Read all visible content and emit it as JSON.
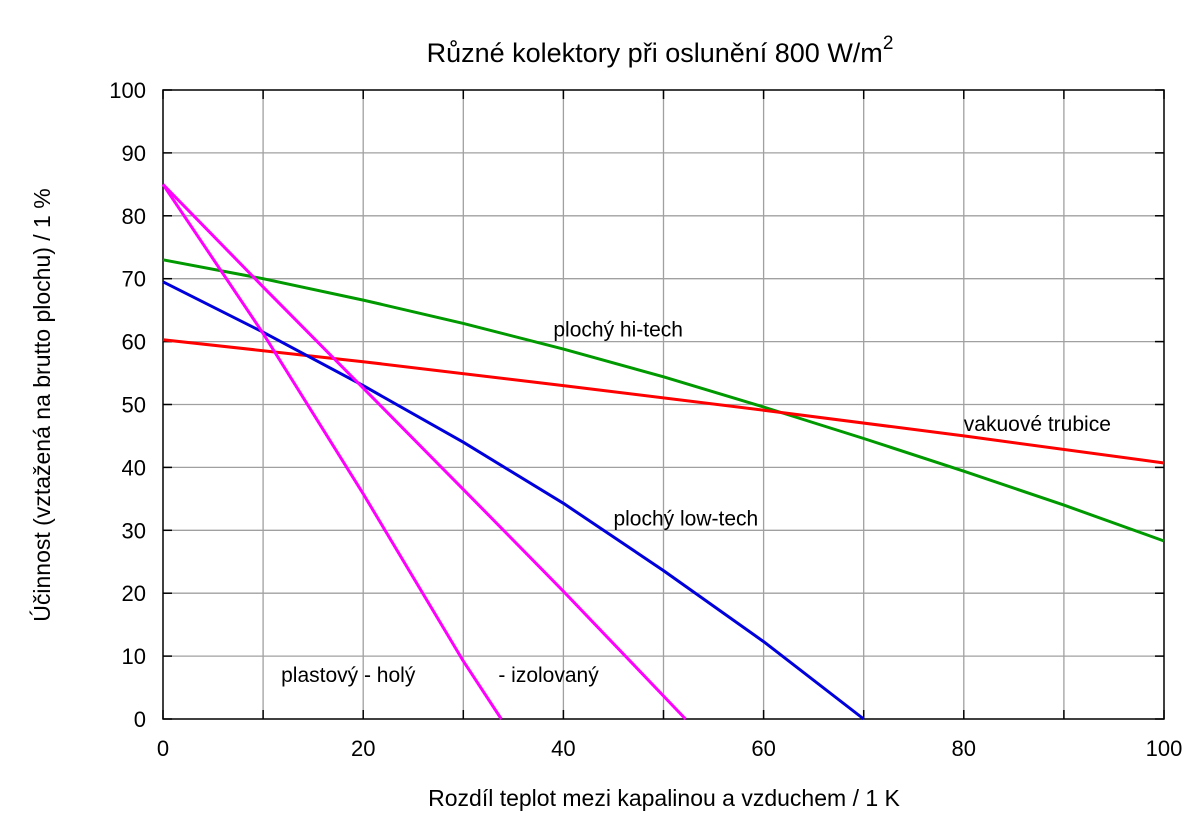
{
  "chart_data": {
    "type": "line",
    "title": "Různé kolektory při oslunění 800 W/m",
    "title_superscript": "2",
    "xlabel": "Rozdíl teplot mezi kapalinou a vzduchem / 1 K",
    "ylabel": "Účinnost (vztažená na brutto plochu) / 1 %",
    "xlim": [
      0,
      100
    ],
    "ylim": [
      0,
      100
    ],
    "x_ticks": [
      0,
      20,
      40,
      60,
      80,
      100
    ],
    "y_ticks": [
      0,
      10,
      20,
      30,
      40,
      50,
      60,
      70,
      80,
      90,
      100
    ],
    "x_grid": [
      0,
      10,
      20,
      30,
      40,
      50,
      60,
      70,
      80,
      90,
      100
    ],
    "y_grid": [
      0,
      10,
      20,
      30,
      40,
      50,
      60,
      70,
      80,
      90,
      100
    ],
    "grid": true,
    "series": [
      {
        "name": "plochý hi-tech",
        "color": "#009900",
        "x": [
          0,
          10,
          20,
          30,
          40,
          50,
          60,
          70,
          80,
          90,
          100
        ],
        "y": [
          73,
          70,
          66.6,
          62.9,
          58.8,
          54.4,
          49.6,
          44.6,
          39.4,
          34,
          28.3
        ]
      },
      {
        "name": "vakuové trubice",
        "color": "#ff0000",
        "x": [
          0,
          20,
          40,
          60,
          80,
          100
        ],
        "y": [
          60.3,
          56.8,
          53,
          49.1,
          45,
          40.7
        ]
      },
      {
        "name": "plochý low-tech",
        "color": "#0000dd",
        "x": [
          0,
          10,
          20,
          30,
          40,
          50,
          60,
          70
        ],
        "y": [
          69.5,
          61.5,
          53,
          44,
          34.3,
          23.6,
          12.3,
          0
        ]
      },
      {
        "name": "plastový - holý",
        "color": "#ff00ff",
        "x": [
          0,
          10,
          20,
          30,
          33.8
        ],
        "y": [
          85,
          61.3,
          35.8,
          9.2,
          0
        ]
      },
      {
        "name": "- izolovaný",
        "color": "#ff00ff",
        "x": [
          0,
          10,
          20,
          30,
          40,
          52.2
        ],
        "y": [
          85,
          68.7,
          52.6,
          36.5,
          20.3,
          0
        ]
      }
    ],
    "annotations": [
      {
        "series": 0,
        "text": "plochý hi-tech",
        "x": 39,
        "y": 60.8
      },
      {
        "series": 1,
        "text": "vakuové trubice",
        "x": 80,
        "y": 45.8
      },
      {
        "series": 2,
        "text": "plochý low-tech",
        "x": 45,
        "y": 30.8
      },
      {
        "series": 3,
        "text": "plastový - holý",
        "x": 11.8,
        "y": 5.9
      },
      {
        "series": 4,
        "text": "- izolovaný",
        "x": 33.5,
        "y": 5.9
      }
    ]
  }
}
